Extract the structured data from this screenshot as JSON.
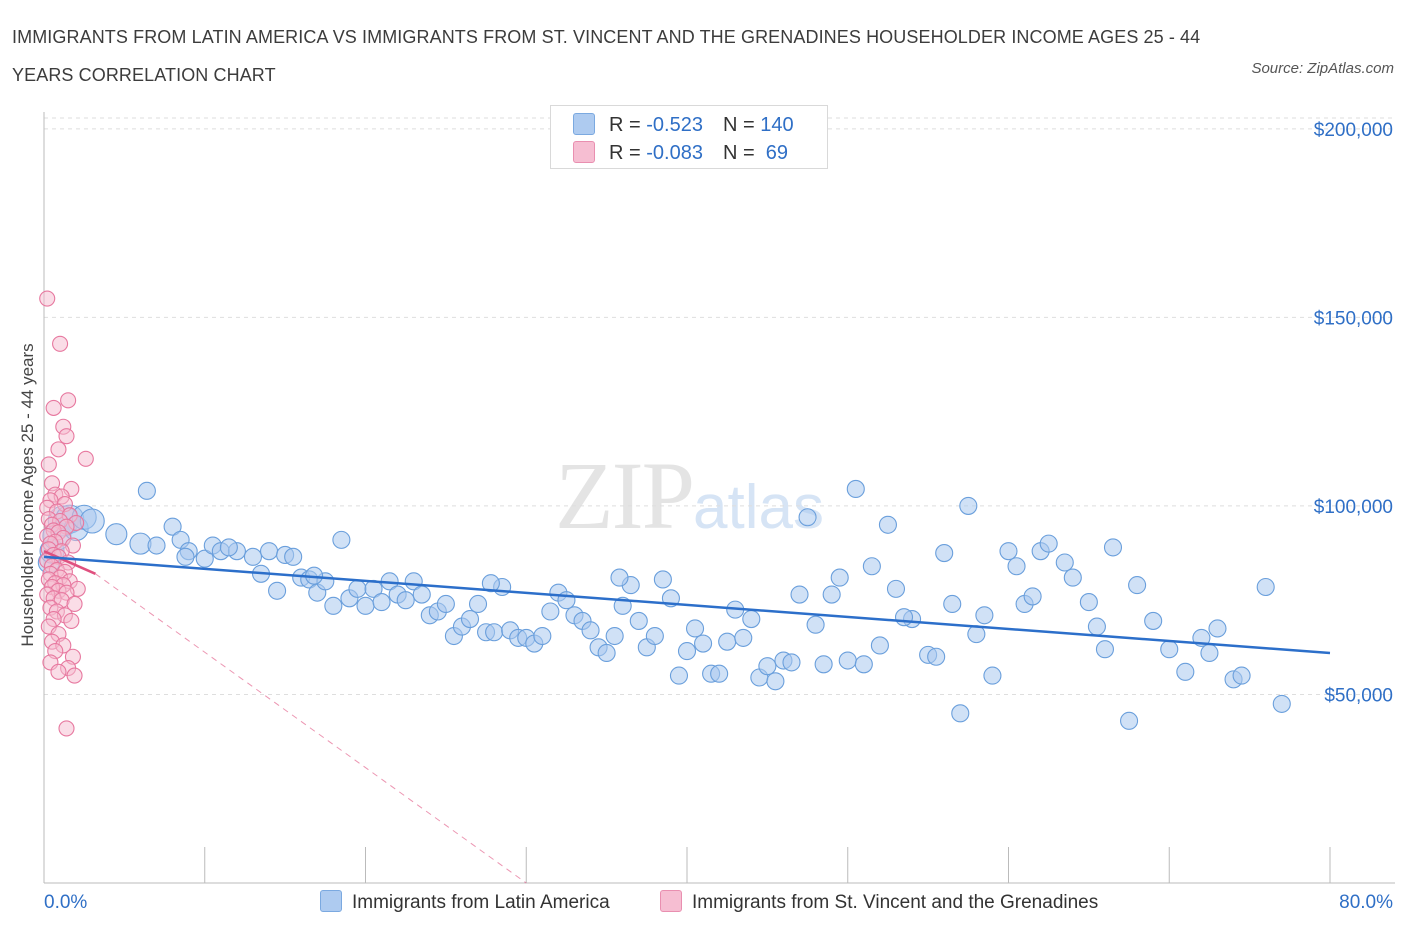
{
  "title": "IMMIGRANTS FROM LATIN AMERICA VS IMMIGRANTS FROM ST. VINCENT AND THE GRENADINES HOUSEHOLDER INCOME AGES 25 - 44 YEARS CORRELATION CHART",
  "source": "Source: ZipAtlas.com",
  "watermark": {
    "zip": "ZIP",
    "atlas": "atlas"
  },
  "legend": {
    "rows": [
      {
        "r_label": "R = ",
        "r_value": "-0.523",
        "n_label": "N = ",
        "n_value": "140",
        "color": "#aecbf0"
      },
      {
        "r_label": "R = ",
        "r_value": "-0.083",
        "n_label": "N = ",
        "n_value": " 69",
        "color": "#f6bed2"
      }
    ]
  },
  "colors": {
    "blue_fill": "#a9c9ee",
    "blue_stroke": "#6a9fdc",
    "blue_line": "#2c6fca",
    "pink_fill": "#f6bcd0",
    "pink_stroke": "#e7789f",
    "pink_line": "#e0507f",
    "axis_label": "#2f6fc6",
    "grid": "#dedede"
  },
  "chart_data": {
    "type": "scatter",
    "title": "IMMIGRANTS FROM LATIN AMERICA VS IMMIGRANTS FROM ST. VINCENT AND THE GRENADINES HOUSEHOLDER INCOME AGES 25 - 44 YEARS CORRELATION CHART",
    "xlabel": "",
    "ylabel": "Householder Income Ages 25 - 44 years",
    "xlim": [
      0,
      80
    ],
    "ylim": [
      0,
      205000
    ],
    "x_tick_labels": [
      {
        "value": 0,
        "label": "0.0%"
      },
      {
        "value": 80,
        "label": "80.0%"
      }
    ],
    "y_tick_labels": [
      {
        "value": 50000,
        "label": "$50,000"
      },
      {
        "value": 100000,
        "label": "$100,000"
      },
      {
        "value": 150000,
        "label": "$150,000"
      },
      {
        "value": 200000,
        "label": "$200,000"
      }
    ],
    "grid": true,
    "legend_position": "top-center",
    "series": [
      {
        "name": "Immigrants from Latin America",
        "stats": {
          "R": -0.523,
          "N": 140
        },
        "trend": {
          "x": [
            0,
            80
          ],
          "y": [
            86500,
            61000
          ],
          "style": "solid"
        },
        "points": [
          [
            0.3,
            85000,
            2
          ],
          [
            0.5,
            88000,
            3
          ],
          [
            0.8,
            92000,
            4
          ],
          [
            1.2,
            96000,
            5
          ],
          [
            1.6,
            96500,
            4
          ],
          [
            2.0,
            94000,
            3
          ],
          [
            2.5,
            97000,
            3
          ],
          [
            3.0,
            96000,
            3
          ],
          [
            4.5,
            92500,
            2
          ],
          [
            6.0,
            90000,
            2
          ],
          [
            6.4,
            104000,
            1
          ],
          [
            7.0,
            89500,
            1
          ],
          [
            8.0,
            94500,
            1
          ],
          [
            8.5,
            91000,
            1
          ],
          [
            9.0,
            88000,
            1
          ],
          [
            10.0,
            86000,
            1
          ],
          [
            10.5,
            89500,
            1
          ],
          [
            11.0,
            88000,
            1
          ],
          [
            12.0,
            88000,
            1
          ],
          [
            13.0,
            86500,
            1
          ],
          [
            13.5,
            82000,
            1
          ],
          [
            14.0,
            88000,
            1
          ],
          [
            14.5,
            77500,
            1
          ],
          [
            15.0,
            87000,
            1
          ],
          [
            15.5,
            86500,
            1
          ],
          [
            16.0,
            81000,
            1
          ],
          [
            16.5,
            80500,
            1
          ],
          [
            17.0,
            77000,
            1
          ],
          [
            17.5,
            80000,
            1
          ],
          [
            18.0,
            73500,
            1
          ],
          [
            18.5,
            91000,
            1
          ],
          [
            19.0,
            75500,
            1
          ],
          [
            19.5,
            78000,
            1
          ],
          [
            20.0,
            73500,
            1
          ],
          [
            20.5,
            78000,
            1
          ],
          [
            21.0,
            74500,
            1
          ],
          [
            21.5,
            80000,
            1
          ],
          [
            22.0,
            76500,
            1
          ],
          [
            22.5,
            75000,
            1
          ],
          [
            23.0,
            80000,
            1
          ],
          [
            23.5,
            76500,
            1
          ],
          [
            24.0,
            71000,
            1
          ],
          [
            24.5,
            72000,
            1
          ],
          [
            25.0,
            74000,
            1
          ],
          [
            25.5,
            65500,
            1
          ],
          [
            26.0,
            68000,
            1
          ],
          [
            26.5,
            70000,
            1
          ],
          [
            27.0,
            74000,
            1
          ],
          [
            27.5,
            66500,
            1
          ],
          [
            28.0,
            66500,
            1
          ],
          [
            28.5,
            78500,
            1
          ],
          [
            29.0,
            67000,
            1
          ],
          [
            29.5,
            65000,
            1
          ],
          [
            30.0,
            65000,
            1
          ],
          [
            30.5,
            63500,
            1
          ],
          [
            31.0,
            65500,
            1
          ],
          [
            31.5,
            72000,
            1
          ],
          [
            32.0,
            77000,
            1
          ],
          [
            32.5,
            75000,
            1
          ],
          [
            33.0,
            71000,
            1
          ],
          [
            33.5,
            69500,
            1
          ],
          [
            34.0,
            67000,
            1
          ],
          [
            34.5,
            62500,
            1
          ],
          [
            35.0,
            61000,
            1
          ],
          [
            35.5,
            65500,
            1
          ],
          [
            36.0,
            73500,
            1
          ],
          [
            36.5,
            79000,
            1
          ],
          [
            37.0,
            69500,
            1
          ],
          [
            37.5,
            62500,
            1
          ],
          [
            38.0,
            65500,
            1
          ],
          [
            38.5,
            80500,
            1
          ],
          [
            39.0,
            75500,
            1
          ],
          [
            39.5,
            55000,
            1
          ],
          [
            40.0,
            61500,
            1
          ],
          [
            40.5,
            67500,
            1
          ],
          [
            41.0,
            63500,
            1
          ],
          [
            41.5,
            55500,
            1
          ],
          [
            42.0,
            55500,
            1
          ],
          [
            42.5,
            64000,
            1
          ],
          [
            43.0,
            72500,
            1
          ],
          [
            43.5,
            65000,
            1
          ],
          [
            44.0,
            70000,
            1
          ],
          [
            44.5,
            54500,
            1
          ],
          [
            45.0,
            57500,
            1
          ],
          [
            45.5,
            53500,
            1
          ],
          [
            46.0,
            59000,
            1
          ],
          [
            46.5,
            58500,
            1
          ],
          [
            47.0,
            76500,
            1
          ],
          [
            47.5,
            97000,
            1
          ],
          [
            48.0,
            68500,
            1
          ],
          [
            48.5,
            58000,
            1
          ],
          [
            49.0,
            76500,
            1
          ],
          [
            49.5,
            81000,
            1
          ],
          [
            50.0,
            59000,
            1
          ],
          [
            50.5,
            104500,
            1
          ],
          [
            51.0,
            58000,
            1
          ],
          [
            51.5,
            84000,
            1
          ],
          [
            52.0,
            63000,
            1
          ],
          [
            52.5,
            95000,
            1
          ],
          [
            53.0,
            78000,
            1
          ],
          [
            54.0,
            70000,
            1
          ],
          [
            55.0,
            60500,
            1
          ],
          [
            55.5,
            60000,
            1
          ],
          [
            56.0,
            87500,
            1
          ],
          [
            56.5,
            74000,
            1
          ],
          [
            57.0,
            45000,
            1
          ],
          [
            57.5,
            100000,
            1
          ],
          [
            58.0,
            66000,
            1
          ],
          [
            58.5,
            71000,
            1
          ],
          [
            59.0,
            55000,
            1
          ],
          [
            60.0,
            88000,
            1
          ],
          [
            60.5,
            84000,
            1
          ],
          [
            61.0,
            74000,
            1
          ],
          [
            61.5,
            76000,
            1
          ],
          [
            62.0,
            88000,
            1
          ],
          [
            62.5,
            90000,
            1
          ],
          [
            63.5,
            85000,
            1
          ],
          [
            64.0,
            81000,
            1
          ],
          [
            65.0,
            74500,
            1
          ],
          [
            65.5,
            68000,
            1
          ],
          [
            66.0,
            62000,
            1
          ],
          [
            66.5,
            89000,
            1
          ],
          [
            67.5,
            43000,
            1
          ],
          [
            68.0,
            79000,
            1
          ],
          [
            69.0,
            69500,
            1
          ],
          [
            70.0,
            62000,
            1
          ],
          [
            71.0,
            56000,
            1
          ],
          [
            72.0,
            65000,
            1
          ],
          [
            72.5,
            61000,
            1
          ],
          [
            73.0,
            67500,
            1
          ],
          [
            74.0,
            54000,
            1
          ],
          [
            76.0,
            78500,
            1
          ],
          [
            77.0,
            47500,
            1
          ],
          [
            74.5,
            55000,
            1
          ],
          [
            53.5,
            70500,
            1
          ],
          [
            35.8,
            81000,
            1
          ],
          [
            27.8,
            79500,
            1
          ],
          [
            16.8,
            81500,
            1
          ],
          [
            8.8,
            86500,
            1
          ],
          [
            11.5,
            89000,
            1
          ]
        ]
      },
      {
        "name": "Immigrants from St. Vincent and the Grenadines",
        "stats": {
          "R": -0.083,
          "N": 69
        },
        "trend": {
          "x": [
            0,
            3.2
          ],
          "y": [
            88000,
            82000
          ],
          "style": "solid",
          "extension": {
            "x": [
              3.2,
              30
            ],
            "y": [
              82000,
              0
            ],
            "style": "dashed"
          }
        },
        "points": [
          [
            0.2,
            155000
          ],
          [
            1.0,
            143000
          ],
          [
            1.5,
            128000
          ],
          [
            0.6,
            126000
          ],
          [
            1.2,
            121000
          ],
          [
            1.4,
            118500
          ],
          [
            0.9,
            115000
          ],
          [
            2.6,
            112500
          ],
          [
            0.3,
            111000
          ],
          [
            0.5,
            106000
          ],
          [
            1.7,
            104500
          ],
          [
            0.7,
            103000
          ],
          [
            1.1,
            102500
          ],
          [
            0.4,
            101500
          ],
          [
            1.3,
            100500
          ],
          [
            0.2,
            99500
          ],
          [
            0.8,
            98500
          ],
          [
            1.6,
            97500
          ],
          [
            0.3,
            96500
          ],
          [
            1.0,
            96000
          ],
          [
            2.0,
            95500
          ],
          [
            0.5,
            95000
          ],
          [
            1.4,
            94500
          ],
          [
            0.6,
            93500
          ],
          [
            0.9,
            93000
          ],
          [
            0.2,
            92000
          ],
          [
            1.2,
            91500
          ],
          [
            0.7,
            90500
          ],
          [
            0.4,
            90000
          ],
          [
            1.8,
            89500
          ],
          [
            0.3,
            88500
          ],
          [
            1.1,
            88000
          ],
          [
            0.6,
            87000
          ],
          [
            0.9,
            86500
          ],
          [
            0.2,
            85500
          ],
          [
            1.5,
            85000
          ],
          [
            0.5,
            84000
          ],
          [
            0.8,
            83000
          ],
          [
            1.3,
            82500
          ],
          [
            0.4,
            82000
          ],
          [
            1.0,
            81000
          ],
          [
            0.3,
            80500
          ],
          [
            1.6,
            80000
          ],
          [
            0.7,
            79500
          ],
          [
            1.2,
            79000
          ],
          [
            0.5,
            78500
          ],
          [
            2.1,
            78000
          ],
          [
            0.9,
            77500
          ],
          [
            1.4,
            77000
          ],
          [
            0.2,
            76500
          ],
          [
            0.6,
            75500
          ],
          [
            1.1,
            75000
          ],
          [
            1.9,
            74000
          ],
          [
            0.4,
            73000
          ],
          [
            0.8,
            72000
          ],
          [
            1.3,
            71000
          ],
          [
            0.6,
            70000
          ],
          [
            1.7,
            69500
          ],
          [
            0.3,
            68000
          ],
          [
            0.9,
            66000
          ],
          [
            0.5,
            64000
          ],
          [
            1.2,
            63000
          ],
          [
            0.7,
            61500
          ],
          [
            1.8,
            60000
          ],
          [
            0.4,
            58500
          ],
          [
            1.5,
            57000
          ],
          [
            0.9,
            56000
          ],
          [
            1.9,
            55000
          ],
          [
            1.4,
            41000
          ]
        ]
      }
    ]
  },
  "bottom_legend": [
    {
      "label": "Immigrants from Latin America",
      "color": "#aecbf0"
    },
    {
      "label": "Immigrants from St. Vincent and the Grenadines",
      "color": "#f6bed2"
    }
  ]
}
